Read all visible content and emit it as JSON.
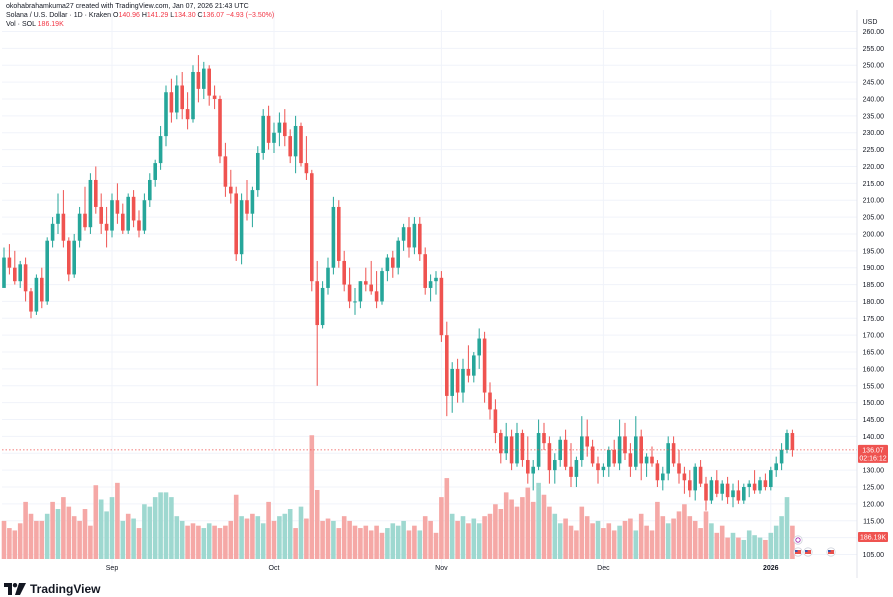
{
  "header": {
    "author_line": "okohabrahamkuma27 created with TradingView.com, Jan 07, 2026 21:43 UTC",
    "symbol_line": "Solana / U.S. Dollar · 1D · Kraken",
    "ohlc": {
      "o_label": "O",
      "o": "140.96",
      "h_label": "H",
      "h": "141.29",
      "l_label": "L",
      "l": "134.30",
      "c_label": "C",
      "c": "136.07",
      "change": "−4.93 (−3.50%)"
    },
    "vol_label": "Vol · SOL",
    "vol_value": "186.19K"
  },
  "axis": {
    "currency": "USD"
  },
  "price_labels": {
    "last_price": "136.07",
    "countdown": "02:16:12",
    "last_volume": "186.19K"
  },
  "footer": {
    "brand": "TradingView"
  },
  "colors": {
    "up": "#26a69a",
    "down": "#ef5350",
    "vol_up": "#9ed8d0",
    "vol_down": "#f5a8a6",
    "grid": "#f0f3fa",
    "axis_text": "#131722"
  },
  "chart_data": {
    "type": "candlestick",
    "title": "Solana / U.S. Dollar · 1D · Kraken",
    "ylabel": "USD",
    "ylim": [
      101,
      264
    ],
    "y_ticks": [
      105,
      110,
      115,
      120,
      125,
      130,
      135,
      140,
      145,
      150,
      155,
      160,
      165,
      170,
      175,
      180,
      185,
      190,
      195,
      200,
      205,
      210,
      215,
      220,
      225,
      230,
      235,
      240,
      245,
      250,
      255,
      260
    ],
    "x_labels": [
      {
        "label": "Sep",
        "index": 20
      },
      {
        "label": "Oct",
        "index": 50
      },
      {
        "label": "Nov",
        "index": 81
      },
      {
        "label": "Dec",
        "index": 111
      },
      {
        "label": "2026",
        "index": 142
      }
    ],
    "grid": true,
    "candles": [
      [
        184,
        196,
        185,
        193
      ],
      [
        193,
        197,
        188,
        190
      ],
      [
        190,
        195,
        185,
        186
      ],
      [
        186,
        192,
        184,
        191
      ],
      [
        191,
        193,
        180,
        183
      ],
      [
        183,
        184,
        175,
        177
      ],
      [
        177,
        188,
        176,
        187
      ],
      [
        187,
        190,
        178,
        180
      ],
      [
        180,
        199,
        179,
        198
      ],
      [
        198,
        205,
        196,
        203
      ],
      [
        203,
        212,
        200,
        206
      ],
      [
        206,
        213,
        196,
        198
      ],
      [
        198,
        199,
        186,
        188
      ],
      [
        188,
        200,
        187,
        198
      ],
      [
        198,
        208,
        196,
        206
      ],
      [
        206,
        214,
        201,
        202
      ],
      [
        202,
        218,
        200,
        216
      ],
      [
        216,
        220,
        206,
        208
      ],
      [
        208,
        212,
        200,
        203
      ],
      [
        203,
        208,
        196,
        201
      ],
      [
        201,
        212,
        199,
        210
      ],
      [
        210,
        215,
        203,
        206
      ],
      [
        206,
        209,
        200,
        201
      ],
      [
        201,
        212,
        200,
        211
      ],
      [
        211,
        213,
        202,
        204
      ],
      [
        204,
        207,
        199,
        201
      ],
      [
        201,
        212,
        200,
        210
      ],
      [
        210,
        218,
        208,
        216
      ],
      [
        216,
        222,
        214,
        221
      ],
      [
        221,
        232,
        219,
        229
      ],
      [
        229,
        244,
        226,
        242
      ],
      [
        242,
        246,
        233,
        236
      ],
      [
        236,
        247,
        234,
        244
      ],
      [
        244,
        248,
        234,
        237
      ],
      [
        237,
        242,
        231,
        234
      ],
      [
        234,
        250,
        233,
        248
      ],
      [
        248,
        253,
        239,
        243
      ],
      [
        243,
        251,
        240,
        249
      ],
      [
        249,
        250,
        238,
        241
      ],
      [
        241,
        244,
        237,
        240
      ],
      [
        240,
        241,
        221,
        223
      ],
      [
        223,
        227,
        211,
        214
      ],
      [
        214,
        219,
        209,
        212
      ],
      [
        212,
        214,
        192,
        194
      ],
      [
        194,
        212,
        191,
        210
      ],
      [
        210,
        216,
        204,
        206
      ],
      [
        206,
        214,
        202,
        213
      ],
      [
        213,
        226,
        211,
        224
      ],
      [
        224,
        237,
        222,
        235
      ],
      [
        235,
        238,
        225,
        227
      ],
      [
        227,
        233,
        224,
        230
      ],
      [
        230,
        236,
        226,
        233
      ],
      [
        233,
        237,
        226,
        229
      ],
      [
        229,
        231,
        221,
        223
      ],
      [
        223,
        235,
        218,
        232
      ],
      [
        232,
        233,
        220,
        221
      ],
      [
        221,
        229,
        216,
        218
      ],
      [
        218,
        219,
        183,
        186
      ],
      [
        186,
        192,
        155,
        173
      ],
      [
        173,
        186,
        172,
        184
      ],
      [
        184,
        193,
        182,
        190
      ],
      [
        190,
        211,
        188,
        208
      ],
      [
        208,
        210,
        190,
        192
      ],
      [
        192,
        195,
        183,
        185
      ],
      [
        185,
        190,
        178,
        180
      ],
      [
        180,
        184,
        176,
        180
      ],
      [
        180,
        186,
        178,
        186
      ],
      [
        186,
        190,
        183,
        185
      ],
      [
        185,
        192,
        182,
        183
      ],
      [
        183,
        189,
        178,
        180
      ],
      [
        180,
        190,
        179,
        189
      ],
      [
        189,
        194,
        186,
        193
      ],
      [
        193,
        195,
        187,
        190
      ],
      [
        190,
        199,
        188,
        198
      ],
      [
        198,
        203,
        195,
        202
      ],
      [
        202,
        205,
        193,
        196
      ],
      [
        196,
        205,
        194,
        203
      ],
      [
        203,
        205,
        192,
        194
      ],
      [
        194,
        196,
        182,
        184
      ],
      [
        184,
        188,
        180,
        186
      ],
      [
        186,
        189,
        182,
        187
      ],
      [
        187,
        189,
        168,
        170
      ],
      [
        170,
        174,
        146,
        152
      ],
      [
        152,
        162,
        147,
        160
      ],
      [
        160,
        163,
        150,
        153
      ],
      [
        153,
        163,
        150,
        160
      ],
      [
        160,
        167,
        156,
        158
      ],
      [
        158,
        165,
        156,
        164
      ],
      [
        164,
        172,
        160,
        169
      ],
      [
        169,
        171,
        150,
        153
      ],
      [
        153,
        156,
        145,
        148
      ],
      [
        148,
        151,
        138,
        141
      ],
      [
        141,
        142,
        132,
        135
      ],
      [
        135,
        144,
        133,
        140
      ],
      [
        140,
        142,
        130,
        132
      ],
      [
        132,
        144,
        131,
        141
      ],
      [
        141,
        142,
        131,
        133
      ],
      [
        133,
        140,
        126,
        129
      ],
      [
        129,
        133,
        124,
        131
      ],
      [
        131,
        145,
        130,
        141
      ],
      [
        141,
        144,
        136,
        138
      ],
      [
        138,
        140,
        126,
        130
      ],
      [
        130,
        135,
        126,
        133
      ],
      [
        133,
        140,
        131,
        139
      ],
      [
        139,
        142,
        130,
        131
      ],
      [
        131,
        138,
        125,
        128
      ],
      [
        128,
        134,
        125,
        133
      ],
      [
        133,
        146,
        131,
        140
      ],
      [
        140,
        145,
        134,
        137
      ],
      [
        137,
        139,
        131,
        132
      ],
      [
        132,
        134,
        126,
        130
      ],
      [
        130,
        132,
        128,
        131
      ],
      [
        131,
        137,
        128,
        136
      ],
      [
        136,
        139,
        131,
        132
      ],
      [
        132,
        145,
        130,
        140
      ],
      [
        140,
        144,
        133,
        135
      ],
      [
        135,
        138,
        128,
        131
      ],
      [
        131,
        146,
        130,
        140
      ],
      [
        140,
        142,
        127,
        132
      ],
      [
        132,
        135,
        128,
        134
      ],
      [
        134,
        137,
        131,
        132
      ],
      [
        132,
        133,
        125,
        127
      ],
      [
        127,
        131,
        124,
        129
      ],
      [
        129,
        140,
        127,
        138
      ],
      [
        138,
        140,
        131,
        132
      ],
      [
        132,
        136,
        126,
        129
      ],
      [
        129,
        131,
        123,
        127
      ],
      [
        127,
        130,
        122,
        124
      ],
      [
        124,
        132,
        121,
        131
      ],
      [
        131,
        133,
        125,
        126
      ],
      [
        126,
        128,
        118,
        121
      ],
      [
        121,
        128,
        120,
        127
      ],
      [
        127,
        130,
        122,
        123
      ],
      [
        123,
        127,
        121,
        126
      ],
      [
        126,
        128,
        120,
        122
      ],
      [
        122,
        126,
        119,
        124
      ],
      [
        124,
        127,
        120,
        121
      ],
      [
        121,
        126,
        120,
        125
      ],
      [
        125,
        127,
        122,
        126
      ],
      [
        126,
        130,
        123,
        124
      ],
      [
        124,
        128,
        123,
        127
      ],
      [
        127,
        129,
        124,
        125
      ],
      [
        125,
        131,
        124,
        130
      ],
      [
        130,
        134,
        128,
        132
      ],
      [
        132,
        138,
        130,
        136
      ],
      [
        136,
        142,
        135,
        141
      ],
      [
        141,
        142,
        134,
        136
      ]
    ],
    "volumes": [
      [
        16,
        1
      ],
      [
        13,
        1
      ],
      [
        12,
        1
      ],
      [
        15,
        1
      ],
      [
        24,
        1
      ],
      [
        19,
        1
      ],
      [
        16,
        1
      ],
      [
        16,
        1
      ],
      [
        19,
        0
      ],
      [
        24,
        1
      ],
      [
        21,
        0
      ],
      [
        26,
        1
      ],
      [
        22,
        1
      ],
      [
        18,
        1
      ],
      [
        16,
        1
      ],
      [
        21,
        1
      ],
      [
        14,
        1
      ],
      [
        31,
        1
      ],
      [
        25,
        0
      ],
      [
        20,
        0
      ],
      [
        26,
        0
      ],
      [
        32,
        1
      ],
      [
        16,
        0
      ],
      [
        19,
        1
      ],
      [
        17,
        0
      ],
      [
        13,
        1
      ],
      [
        23,
        0
      ],
      [
        22,
        0
      ],
      [
        26,
        0
      ],
      [
        28,
        0
      ],
      [
        28,
        0
      ],
      [
        26,
        0
      ],
      [
        18,
        0
      ],
      [
        16,
        0
      ],
      [
        14,
        1
      ],
      [
        15,
        1
      ],
      [
        14,
        1
      ],
      [
        13,
        0
      ],
      [
        15,
        0
      ],
      [
        14,
        1
      ],
      [
        13,
        1
      ],
      [
        14,
        1
      ],
      [
        16,
        1
      ],
      [
        27,
        1
      ],
      [
        18,
        0
      ],
      [
        17,
        1
      ],
      [
        19,
        1
      ],
      [
        18,
        0
      ],
      [
        15,
        0
      ],
      [
        24,
        1
      ],
      [
        16,
        1
      ],
      [
        18,
        0
      ],
      [
        19,
        0
      ],
      [
        21,
        0
      ],
      [
        13,
        1
      ],
      [
        22,
        0
      ],
      [
        17,
        1
      ],
      [
        52,
        1
      ],
      [
        29,
        1
      ],
      [
        16,
        1
      ],
      [
        17,
        1
      ],
      [
        16,
        0
      ],
      [
        13,
        1
      ],
      [
        18,
        1
      ],
      [
        16,
        1
      ],
      [
        14,
        1
      ],
      [
        13,
        1
      ],
      [
        14,
        1
      ],
      [
        12,
        1
      ],
      [
        14,
        1
      ],
      [
        11,
        1
      ],
      [
        13,
        0
      ],
      [
        15,
        0
      ],
      [
        14,
        0
      ],
      [
        16,
        0
      ],
      [
        12,
        1
      ],
      [
        14,
        1
      ],
      [
        12,
        0
      ],
      [
        18,
        1
      ],
      [
        16,
        1
      ],
      [
        11,
        1
      ],
      [
        26,
        1
      ],
      [
        34,
        1
      ],
      [
        19,
        0
      ],
      [
        16,
        1
      ],
      [
        18,
        0
      ],
      [
        15,
        1
      ],
      [
        17,
        0
      ],
      [
        15,
        0
      ],
      [
        18,
        1
      ],
      [
        19,
        1
      ],
      [
        23,
        1
      ],
      [
        21,
        1
      ],
      [
        28,
        1
      ],
      [
        25,
        1
      ],
      [
        22,
        1
      ],
      [
        26,
        1
      ],
      [
        30,
        1
      ],
      [
        24,
        1
      ],
      [
        32,
        0
      ],
      [
        27,
        1
      ],
      [
        22,
        1
      ],
      [
        19,
        0
      ],
      [
        15,
        0
      ],
      [
        17,
        1
      ],
      [
        14,
        1
      ],
      [
        12,
        1
      ],
      [
        22,
        1
      ],
      [
        18,
        1
      ],
      [
        15,
        1
      ],
      [
        16,
        0
      ],
      [
        13,
        1
      ],
      [
        15,
        1
      ],
      [
        12,
        1
      ],
      [
        14,
        0
      ],
      [
        16,
        1
      ],
      [
        17,
        1
      ],
      [
        12,
        0
      ],
      [
        19,
        1
      ],
      [
        14,
        1
      ],
      [
        12,
        1
      ],
      [
        24,
        1
      ],
      [
        18,
        1
      ],
      [
        15,
        0
      ],
      [
        17,
        1
      ],
      [
        20,
        1
      ],
      [
        23,
        1
      ],
      [
        18,
        1
      ],
      [
        16,
        1
      ],
      [
        13,
        1
      ],
      [
        20,
        1
      ],
      [
        15,
        0
      ],
      [
        11,
        1
      ],
      [
        14,
        1
      ],
      [
        9,
        1
      ],
      [
        11,
        0
      ],
      [
        9,
        1
      ],
      [
        8,
        0
      ],
      [
        12,
        0
      ],
      [
        10,
        0
      ],
      [
        9,
        0
      ],
      [
        8,
        1
      ],
      [
        11,
        0
      ],
      [
        14,
        0
      ],
      [
        18,
        0
      ],
      [
        26,
        0
      ],
      [
        14,
        1
      ]
    ]
  }
}
